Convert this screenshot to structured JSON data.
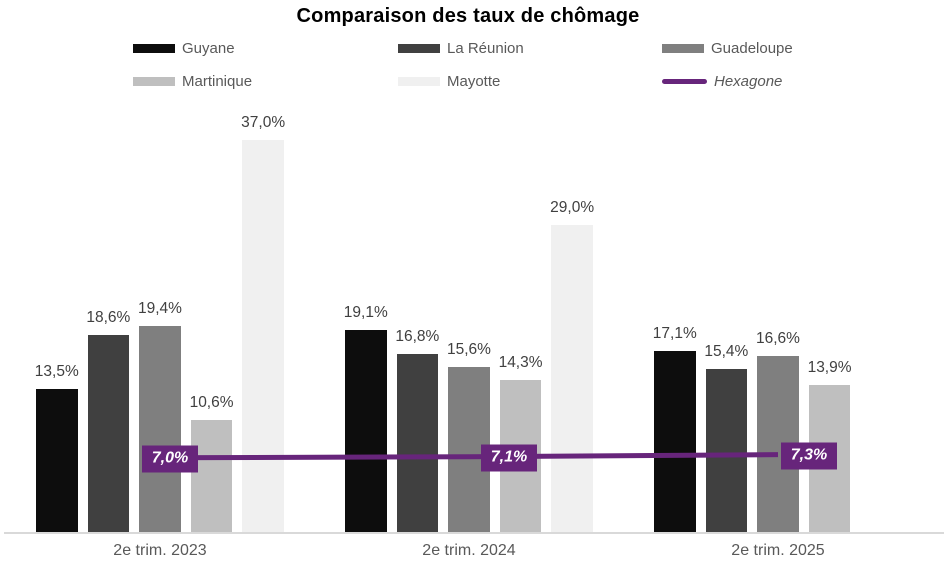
{
  "chart": {
    "accent_color": "#67257b",
    "axis_color": "#d9d9d9",
    "value_label_color": "#404040",
    "tick_label_color": "#595959",
    "background_color": "#ffffff"
  },
  "chart_data": {
    "type": "bar",
    "title": "Comparaison des taux de chômage",
    "categories": [
      "2e trim. 2023",
      "2e trim. 2024",
      "2e trim. 2025"
    ],
    "series": [
      {
        "name": "Guyane",
        "color": "#0d0d0d",
        "values": [
          13.5,
          19.1,
          17.1
        ]
      },
      {
        "name": "La Réunion",
        "color": "#404040",
        "values": [
          18.6,
          16.8,
          15.4
        ]
      },
      {
        "name": "Guadeloupe",
        "color": "#7f7f7f",
        "values": [
          19.4,
          15.6,
          16.6
        ]
      },
      {
        "name": "Martinique",
        "color": "#bfbfbf",
        "values": [
          10.6,
          14.3,
          13.9
        ]
      },
      {
        "name": "Mayotte",
        "color": "#f0f0f0",
        "values": [
          37.0,
          29.0,
          null
        ]
      }
    ],
    "line_series": {
      "name": "Hexagone",
      "color": "#67257b",
      "values": [
        7.0,
        7.1,
        7.3
      ]
    },
    "data_labels": {
      "bars": [
        [
          "13,5%",
          "19,1%",
          "17,1%"
        ],
        [
          "18,6%",
          "16,8%",
          "15,4%"
        ],
        [
          "19,4%",
          "15,6%",
          "16,6%"
        ],
        [
          "10,6%",
          "14,3%",
          "13,9%"
        ],
        [
          "37,0%",
          "29,0%",
          null
        ]
      ],
      "line": [
        "7,0%",
        "7,1%",
        "7,3%"
      ]
    },
    "legend": {
      "position": "top",
      "rows": 2,
      "columns": 3,
      "order": [
        "Guyane",
        "La Réunion",
        "Guadeloupe",
        "Martinique",
        "Mayotte",
        "Hexagone"
      ]
    },
    "ylim": [
      0,
      40
    ],
    "grid": false,
    "value_format": "percent, one decimal, French comma"
  }
}
